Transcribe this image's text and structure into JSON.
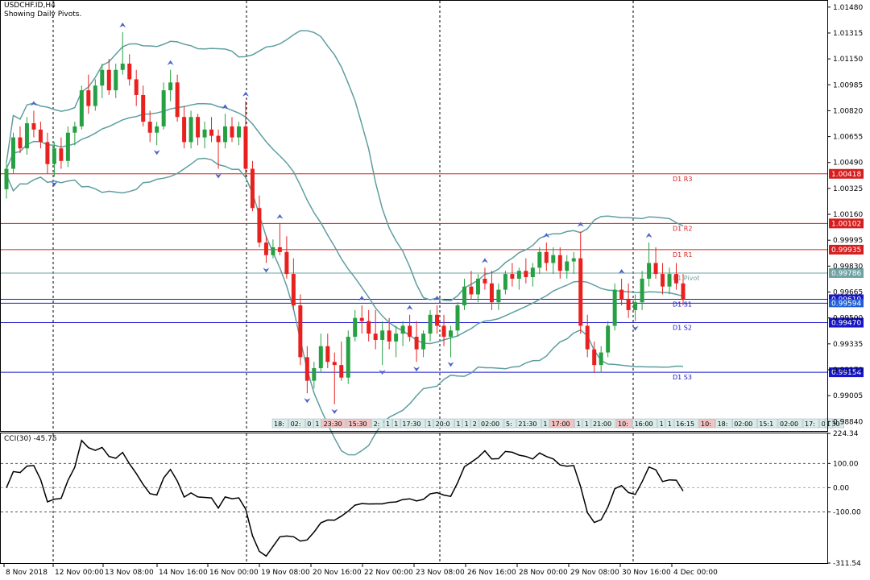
{
  "header": {
    "symbol_label": "USDCHF.ID,H4",
    "subtitle": "Showing Daily Pivots."
  },
  "colors": {
    "bull": "#26a042",
    "bear": "#e8211f",
    "band": "#5f9ea0",
    "resistance": "#d61e1e",
    "support": "#1717c9",
    "pivot": "#6fa3a3",
    "fractal": "#4b63c9"
  },
  "price_axis": {
    "ticks": [
      "1.01480",
      "1.01315",
      "1.01150",
      "1.00985",
      "1.00820",
      "1.00655",
      "1.00490",
      "1.00325",
      "1.00160",
      "0.99995",
      "0.99830",
      "0.99665",
      "0.99500",
      "0.99335",
      "0.99170",
      "0.99005",
      "0.98840"
    ],
    "tick_values": [
      1.0148,
      1.01315,
      1.0115,
      1.00985,
      1.0082,
      1.00655,
      1.0049,
      1.00325,
      1.0016,
      0.99995,
      0.9983,
      0.99665,
      0.995,
      0.99335,
      0.9917,
      0.99005,
      0.9884
    ]
  },
  "pivots": [
    {
      "label": "D1  R3",
      "value": 1.00418,
      "price_label": "1.00418",
      "kind": "resistance"
    },
    {
      "label": "D1  R2",
      "value": 1.00102,
      "price_label": "1.00102",
      "kind": "resistance"
    },
    {
      "label": "D1  R1",
      "value": 0.99935,
      "price_label": "0.99935",
      "kind": "resistance"
    },
    {
      "label": "D1  Pivot",
      "value": 0.99786,
      "price_label": "0.99786",
      "kind": "pivot"
    },
    {
      "label": "D1  S1",
      "value": 0.99619,
      "price_label": "0.99619",
      "kind": "support"
    },
    {
      "label": "D1  S2",
      "value": 0.9947,
      "price_label": "0.99470",
      "kind": "support"
    },
    {
      "label": "D1  S3",
      "value": 0.99154,
      "price_label": "0.99154",
      "kind": "support"
    }
  ],
  "current_price": {
    "value": 0.99594,
    "label": "0.99594"
  },
  "session_labels": [
    "18:",
    "02:",
    "0",
    "1",
    "23:30",
    "15:30",
    "2:",
    "1",
    "1",
    "17:30",
    "1",
    "20:0",
    "1",
    "1",
    "2",
    "02:00",
    "5:",
    "21:30",
    "1",
    "17:00",
    "1",
    "1",
    "21:00",
    "10:",
    "16:00",
    "1",
    "1",
    "16:15",
    "10:",
    "18:",
    "02:00",
    "15:1",
    "02:00",
    "17:",
    "01:30",
    "1"
  ],
  "cci": {
    "label": "CCI(30) -45.75",
    "ticks": [
      "224.34",
      "100.00",
      "0.00",
      "-100.00",
      "-311.54"
    ],
    "tick_values": [
      224.34,
      100,
      0,
      -100,
      -311.54
    ]
  },
  "time_axis": {
    "labels": [
      "8 Nov 2018",
      "12 Nov 00:00",
      "13 Nov 08:00",
      "14 Nov 16:00",
      "16 Nov 00:00",
      "19 Nov 08:00",
      "20 Nov 16:00",
      "22 Nov 00:00",
      "23 Nov 08:00",
      "26 Nov 16:00",
      "28 Nov 00:00",
      "29 Nov 08:00",
      "30 Nov 16:00",
      "4 Dec 00:00"
    ]
  },
  "chart_data": {
    "type": "candlestick",
    "symbol": "USDCHF.ID",
    "timeframe": "H4",
    "candles": [
      [
        1.0032,
        1.0049,
        1.0026,
        1.0045
      ],
      [
        1.0045,
        1.0068,
        1.0042,
        1.0065
      ],
      [
        1.0065,
        1.0072,
        1.0055,
        1.0058
      ],
      [
        1.0058,
        1.0078,
        1.0054,
        1.0074
      ],
      [
        1.0074,
        1.0082,
        1.0065,
        1.007
      ],
      [
        1.007,
        1.0075,
        1.0058,
        1.0062
      ],
      [
        1.0062,
        1.0068,
        1.0042,
        1.0048
      ],
      [
        1.0048,
        1.0062,
        1.004,
        1.0058
      ],
      [
        1.0058,
        1.0065,
        1.0045,
        1.005
      ],
      [
        1.005,
        1.0072,
        1.0046,
        1.0068
      ],
      [
        1.0068,
        1.0075,
        1.006,
        1.0072
      ],
      [
        1.0072,
        1.0098,
        1.007,
        1.0095
      ],
      [
        1.0095,
        1.0105,
        1.008,
        1.0085
      ],
      [
        1.0085,
        1.0102,
        1.0082,
        1.0098
      ],
      [
        1.0098,
        1.0112,
        1.009,
        1.0108
      ],
      [
        1.0108,
        1.0115,
        1.0092,
        1.0095
      ],
      [
        1.0095,
        1.0112,
        1.009,
        1.0108
      ],
      [
        1.0108,
        1.0132,
        1.0105,
        1.0112
      ],
      [
        1.0112,
        1.0118,
        1.0098,
        1.0102
      ],
      [
        1.0102,
        1.0108,
        1.0085,
        1.0092
      ],
      [
        1.0092,
        1.0098,
        1.0072,
        1.0075
      ],
      [
        1.0075,
        1.0082,
        1.0062,
        1.0068
      ],
      [
        1.0068,
        1.0075,
        1.006,
        1.0072
      ],
      [
        1.0072,
        1.01,
        1.007,
        1.0095
      ],
      [
        1.0095,
        1.0108,
        1.0088,
        1.01
      ],
      [
        1.01,
        1.0105,
        1.0075,
        1.0078
      ],
      [
        1.0078,
        1.0085,
        1.0058,
        1.0062
      ],
      [
        1.0062,
        1.0082,
        1.0058,
        1.0078
      ],
      [
        1.0078,
        1.008,
        1.006,
        1.0065
      ],
      [
        1.0065,
        1.0075,
        1.0058,
        1.007
      ],
      [
        1.007,
        1.0078,
        1.0062,
        1.0066
      ],
      [
        1.0066,
        1.007,
        1.0045,
        1.0062
      ],
      [
        1.0062,
        1.008,
        1.0058,
        1.0072
      ],
      [
        1.0072,
        1.0078,
        1.0062,
        1.0065
      ],
      [
        1.0065,
        1.0075,
        1.006,
        1.0072
      ],
      [
        1.0072,
        1.0088,
        1.004,
        1.0045
      ],
      [
        1.0045,
        1.005,
        1.0018,
        1.002
      ],
      [
        1.002,
        1.0028,
        0.9995,
        0.9998
      ],
      [
        0.9998,
        1.0002,
        0.9985,
        0.999
      ],
      [
        0.999,
        1.0,
        0.9988,
        0.9995
      ],
      [
        0.9995,
        1.001,
        0.999,
        0.9992
      ],
      [
        0.9992,
        1.0002,
        0.9975,
        0.9978
      ],
      [
        0.9978,
        0.9988,
        0.9955,
        0.9958
      ],
      [
        0.9958,
        0.9965,
        0.992,
        0.9925
      ],
      [
        0.9925,
        0.9932,
        0.9902,
        0.991
      ],
      [
        0.991,
        0.9922,
        0.9905,
        0.9918
      ],
      [
        0.9918,
        0.994,
        0.9915,
        0.9932
      ],
      [
        0.9932,
        0.994,
        0.9918,
        0.9922
      ],
      [
        0.9922,
        0.9928,
        0.9895,
        0.992
      ],
      [
        0.992,
        0.9935,
        0.991,
        0.9912
      ],
      [
        0.9912,
        0.9942,
        0.9908,
        0.9938
      ],
      [
        0.9938,
        0.9955,
        0.9935,
        0.995
      ],
      [
        0.995,
        0.9958,
        0.994,
        0.9948
      ],
      [
        0.9948,
        0.9955,
        0.9935,
        0.994
      ],
      [
        0.994,
        0.9955,
        0.993,
        0.9936
      ],
      [
        0.9936,
        0.9948,
        0.992,
        0.9942
      ],
      [
        0.9942,
        0.995,
        0.993,
        0.9935
      ],
      [
        0.9935,
        0.9945,
        0.9925,
        0.994
      ],
      [
        0.994,
        0.9948,
        0.9932,
        0.9945
      ],
      [
        0.9945,
        0.9952,
        0.9935,
        0.9938
      ],
      [
        0.9938,
        0.9948,
        0.9922,
        0.993
      ],
      [
        0.993,
        0.9942,
        0.9925,
        0.994
      ],
      [
        0.994,
        0.9955,
        0.9935,
        0.9952
      ],
      [
        0.9952,
        0.9958,
        0.994,
        0.9945
      ],
      [
        0.9945,
        0.9952,
        0.9932,
        0.9938
      ],
      [
        0.9938,
        0.9945,
        0.9925,
        0.9942
      ],
      [
        0.9942,
        0.996,
        0.9938,
        0.9958
      ],
      [
        0.9958,
        0.9975,
        0.9955,
        0.997
      ],
      [
        0.997,
        0.998,
        0.9962,
        0.9965
      ],
      [
        0.9965,
        0.9978,
        0.996,
        0.9975
      ],
      [
        0.9975,
        0.9982,
        0.9968,
        0.9972
      ],
      [
        0.9972,
        0.998,
        0.9955,
        0.996
      ],
      [
        0.996,
        0.9972,
        0.9955,
        0.9968
      ],
      [
        0.9968,
        0.998,
        0.9965,
        0.9978
      ],
      [
        0.9978,
        0.9985,
        0.997,
        0.9975
      ],
      [
        0.9975,
        0.9982,
        0.9968,
        0.998
      ],
      [
        0.998,
        0.9988,
        0.9972,
        0.9976
      ],
      [
        0.9976,
        0.9985,
        0.997,
        0.9982
      ],
      [
        0.9982,
        0.9995,
        0.9978,
        0.9992
      ],
      [
        0.9992,
        0.9998,
        0.998,
        0.9985
      ],
      [
        0.9985,
        0.9995,
        0.9978,
        0.999
      ],
      [
        0.999,
        0.9995,
        0.9975,
        0.998
      ],
      [
        0.998,
        0.999,
        0.9975,
        0.9986
      ],
      [
        0.9986,
        0.9992,
        0.9978,
        0.9988
      ],
      [
        0.9988,
        1.0005,
        0.994,
        0.9945
      ],
      [
        0.9945,
        0.9952,
        0.9925,
        0.993
      ],
      [
        0.993,
        0.9935,
        0.9915,
        0.992
      ],
      [
        0.992,
        0.9932,
        0.9915,
        0.9928
      ],
      [
        0.9928,
        0.9948,
        0.9925,
        0.9945
      ],
      [
        0.9945,
        0.9972,
        0.9942,
        0.9968
      ],
      [
        0.9968,
        0.9975,
        0.9958,
        0.9962
      ],
      [
        0.9962,
        0.9972,
        0.995,
        0.9955
      ],
      [
        0.9955,
        0.9965,
        0.9948,
        0.996
      ],
      [
        0.996,
        0.998,
        0.9955,
        0.9975
      ],
      [
        0.9975,
        0.9998,
        0.997,
        0.9985
      ],
      [
        0.9985,
        0.9995,
        0.9975,
        0.9978
      ],
      [
        0.9978,
        0.9985,
        0.9965,
        0.997
      ],
      [
        0.997,
        0.9982,
        0.9965,
        0.9978
      ],
      [
        0.9978,
        0.9985,
        0.9968,
        0.9972
      ],
      [
        0.9972,
        0.9978,
        0.9958,
        0.9962
      ]
    ]
  }
}
